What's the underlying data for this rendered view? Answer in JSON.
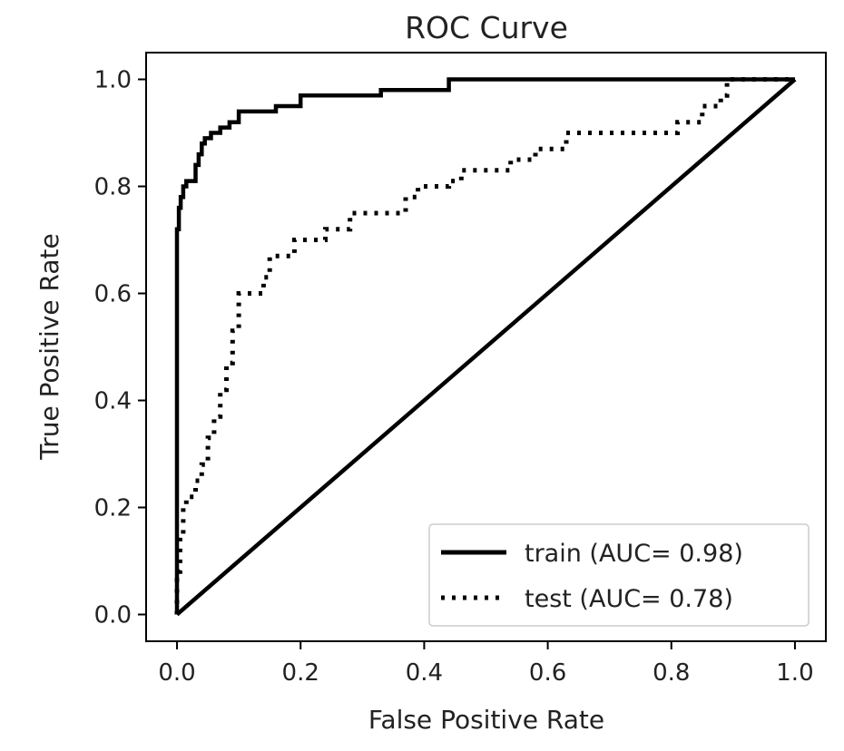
{
  "chart_data": {
    "type": "line",
    "title": "ROC Curve",
    "xlabel": "False Positive Rate",
    "ylabel": "True Positive Rate",
    "xlim": [
      -0.05,
      1.05
    ],
    "ylim": [
      -0.05,
      1.05
    ],
    "xticks": [
      "0.0",
      "0.2",
      "0.4",
      "0.6",
      "0.8",
      "1.0"
    ],
    "yticks": [
      "0.0",
      "0.2",
      "0.4",
      "0.6",
      "0.8",
      "1.0"
    ],
    "grid": false,
    "legend_position": "bottom-right",
    "series": [
      {
        "name": "train (AUC= 0.98)",
        "style": "solid",
        "color": "#000000",
        "x": [
          0,
          0,
          0.003,
          0.003,
          0.006,
          0.006,
          0.01,
          0.01,
          0.015,
          0.015,
          0.02,
          0.02,
          0.025,
          0.025,
          0.03,
          0.03,
          0.035,
          0.035,
          0.04,
          0.04,
          0.045,
          0.045,
          0.055,
          0.055,
          0.07,
          0.07,
          0.085,
          0.085,
          0.1,
          0.1,
          0.16,
          0.16,
          0.2,
          0.2,
          0.33,
          0.33,
          0.44,
          0.44,
          1.0
        ],
        "y": [
          0,
          0.72,
          0.72,
          0.76,
          0.76,
          0.78,
          0.78,
          0.8,
          0.8,
          0.81,
          0.81,
          0.81,
          0.81,
          0.81,
          0.81,
          0.84,
          0.84,
          0.86,
          0.86,
          0.88,
          0.88,
          0.89,
          0.89,
          0.9,
          0.9,
          0.91,
          0.91,
          0.92,
          0.92,
          0.94,
          0.94,
          0.95,
          0.95,
          0.97,
          0.97,
          0.98,
          0.98,
          1.0,
          1.0
        ]
      },
      {
        "name": "test (AUC= 0.78)",
        "style": "dotted",
        "color": "#000000",
        "x": [
          0,
          0,
          0.005,
          0.005,
          0.01,
          0.01,
          0.015,
          0.015,
          0.03,
          0.03,
          0.04,
          0.04,
          0.05,
          0.05,
          0.06,
          0.06,
          0.07,
          0.07,
          0.08,
          0.08,
          0.09,
          0.09,
          0.1,
          0.1,
          0.14,
          0.14,
          0.15,
          0.15,
          0.19,
          0.19,
          0.24,
          0.24,
          0.28,
          0.28,
          0.37,
          0.37,
          0.39,
          0.39,
          0.44,
          0.44,
          0.46,
          0.46,
          0.54,
          0.54,
          0.58,
          0.58,
          0.63,
          0.63,
          0.81,
          0.81,
          0.85,
          0.85,
          0.88,
          0.88,
          0.89,
          0.89,
          1.0
        ],
        "y": [
          0,
          0.08,
          0.08,
          0.15,
          0.15,
          0.2,
          0.2,
          0.22,
          0.22,
          0.25,
          0.25,
          0.28,
          0.28,
          0.33,
          0.33,
          0.37,
          0.37,
          0.42,
          0.42,
          0.47,
          0.47,
          0.53,
          0.53,
          0.6,
          0.6,
          0.63,
          0.63,
          0.67,
          0.67,
          0.7,
          0.7,
          0.72,
          0.72,
          0.75,
          0.75,
          0.78,
          0.78,
          0.8,
          0.8,
          0.81,
          0.81,
          0.83,
          0.83,
          0.85,
          0.85,
          0.87,
          0.87,
          0.9,
          0.9,
          0.92,
          0.92,
          0.95,
          0.95,
          0.97,
          0.97,
          1.0,
          1.0
        ]
      },
      {
        "name": "",
        "style": "solid",
        "color": "#000000",
        "x": [
          0,
          1
        ],
        "y": [
          0,
          1
        ]
      }
    ]
  }
}
